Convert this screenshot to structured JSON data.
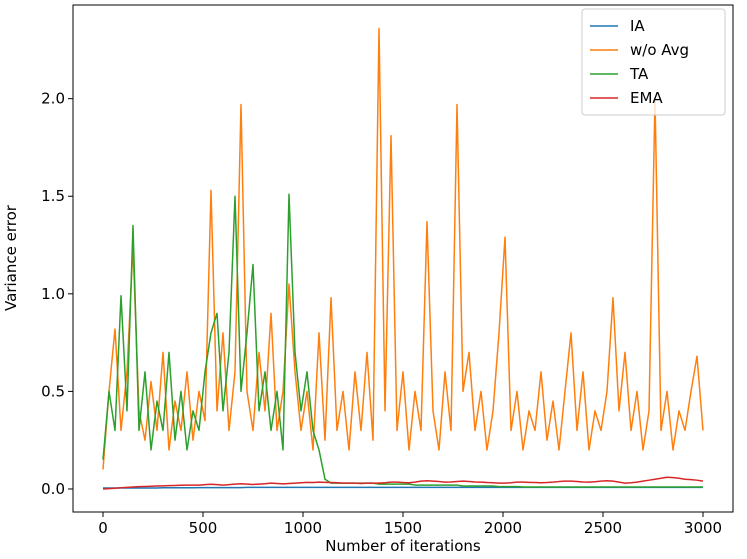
{
  "chart_data": {
    "type": "line",
    "xlabel": "Number of iterations",
    "ylabel": "Variance error",
    "xlim": [
      -150,
      3150
    ],
    "ylim": [
      -0.118,
      2.48
    ],
    "xticks": [
      0,
      500,
      1000,
      1500,
      2000,
      2500,
      3000
    ],
    "yticks": [
      {
        "value": 0,
        "label": "0.0"
      },
      {
        "value": 0.5,
        "label": "0.5"
      },
      {
        "value": 1,
        "label": "1.0"
      },
      {
        "value": 1.5,
        "label": "1.5"
      },
      {
        "value": 2,
        "label": "2.0"
      }
    ],
    "legend": "upper right",
    "grid": false,
    "x": [
      0,
      30,
      60,
      90,
      120,
      150,
      180,
      210,
      240,
      270,
      300,
      330,
      360,
      390,
      420,
      450,
      480,
      510,
      540,
      570,
      600,
      630,
      660,
      690,
      720,
      750,
      780,
      810,
      840,
      870,
      900,
      930,
      960,
      990,
      1020,
      1050,
      1080,
      1110,
      1140,
      1170,
      1200,
      1230,
      1260,
      1290,
      1320,
      1350,
      1380,
      1410,
      1440,
      1470,
      1500,
      1530,
      1560,
      1590,
      1620,
      1650,
      1680,
      1710,
      1740,
      1770,
      1800,
      1830,
      1860,
      1890,
      1920,
      1950,
      1980,
      2010,
      2040,
      2070,
      2100,
      2130,
      2160,
      2190,
      2220,
      2250,
      2280,
      2310,
      2340,
      2370,
      2400,
      2430,
      2460,
      2490,
      2520,
      2550,
      2580,
      2610,
      2640,
      2670,
      2700,
      2730,
      2760,
      2790,
      2820,
      2850,
      2880,
      2910,
      2940,
      2970,
      3000
    ],
    "series": [
      {
        "name": "IA",
        "color": "#1f77b4",
        "values": [
          0.005,
          0.005,
          0.005,
          0.005,
          0.005,
          0.005,
          0.005,
          0.005,
          0.005,
          0.005,
          0.006,
          0.006,
          0.006,
          0.006,
          0.006,
          0.006,
          0.007,
          0.007,
          0.007,
          0.007,
          0.007,
          0.007,
          0.007,
          0.007,
          0.008,
          0.008,
          0.008,
          0.008,
          0.008,
          0.008,
          0.008,
          0.008,
          0.008,
          0.008,
          0.008,
          0.008,
          0.008,
          0.008,
          0.008,
          0.008,
          0.008,
          0.008,
          0.008,
          0.008,
          0.008,
          0.008,
          0.008,
          0.008,
          0.008,
          0.008,
          0.008,
          0.008,
          0.008,
          0.008,
          0.008,
          0.008,
          0.008,
          0.008,
          0.008,
          0.008,
          0.008,
          0.008,
          0.008,
          0.008,
          0.008,
          0.008,
          0.008,
          0.008,
          0.008,
          0.008,
          0.008,
          0.008,
          0.008,
          0.008,
          0.008,
          0.008,
          0.008,
          0.008,
          0.008,
          0.008,
          0.008,
          0.008,
          0.008,
          0.008,
          0.008,
          0.008,
          0.008,
          0.008,
          0.008,
          0.008,
          0.008,
          0.008,
          0.008,
          0.008,
          0.008,
          0.008,
          0.008,
          0.008,
          0.008,
          0.008,
          0.008
        ]
      },
      {
        "name": "w/o Avg",
        "color": "#ff7f0e",
        "values": [
          0.1,
          0.5,
          0.82,
          0.3,
          0.6,
          1.24,
          0.4,
          0.25,
          0.55,
          0.3,
          0.7,
          0.2,
          0.45,
          0.3,
          0.6,
          0.25,
          0.5,
          0.35,
          1.53,
          0.4,
          0.8,
          0.3,
          0.6,
          1.97,
          0.5,
          0.3,
          0.7,
          0.4,
          0.9,
          0.3,
          0.5,
          1.05,
          0.6,
          0.3,
          0.5,
          0.2,
          0.8,
          0.25,
          0.98,
          0.3,
          0.5,
          0.2,
          0.6,
          0.3,
          0.7,
          0.25,
          2.36,
          0.4,
          1.81,
          0.3,
          0.6,
          0.2,
          0.5,
          0.3,
          1.37,
          0.4,
          0.2,
          0.6,
          0.3,
          1.97,
          0.5,
          0.7,
          0.3,
          0.5,
          0.2,
          0.4,
          0.8,
          1.29,
          0.3,
          0.5,
          0.2,
          0.4,
          0.3,
          0.6,
          0.25,
          0.45,
          0.2,
          0.5,
          0.8,
          0.3,
          0.6,
          0.2,
          0.4,
          0.3,
          0.5,
          0.98,
          0.4,
          0.7,
          0.3,
          0.5,
          0.2,
          0.4,
          2.0,
          0.3,
          0.5,
          0.2,
          0.4,
          0.3,
          0.5,
          0.68,
          0.3
        ]
      },
      {
        "name": "TA",
        "color": "#2ca02c",
        "values": [
          0.15,
          0.5,
          0.3,
          0.99,
          0.4,
          1.35,
          0.3,
          0.6,
          0.2,
          0.45,
          0.3,
          0.7,
          0.25,
          0.5,
          0.2,
          0.4,
          0.3,
          0.6,
          0.8,
          0.9,
          0.4,
          0.7,
          1.5,
          0.5,
          0.8,
          1.15,
          0.4,
          0.6,
          0.3,
          0.5,
          0.2,
          1.51,
          0.7,
          0.4,
          0.6,
          0.3,
          0.2,
          0.05,
          0.03,
          0.03,
          0.03,
          0.03,
          0.03,
          0.03,
          0.03,
          0.03,
          0.025,
          0.025,
          0.025,
          0.025,
          0.025,
          0.025,
          0.02,
          0.02,
          0.02,
          0.02,
          0.02,
          0.02,
          0.02,
          0.02,
          0.015,
          0.015,
          0.015,
          0.015,
          0.015,
          0.015,
          0.012,
          0.012,
          0.012,
          0.012,
          0.01,
          0.01,
          0.01,
          0.01,
          0.01,
          0.01,
          0.01,
          0.01,
          0.01,
          0.01,
          0.01,
          0.01,
          0.01,
          0.01,
          0.01,
          0.01,
          0.01,
          0.01,
          0.01,
          0.01,
          0.01,
          0.01,
          0.01,
          0.01,
          0.01,
          0.01,
          0.01,
          0.01,
          0.01,
          0.01,
          0.01
        ]
      },
      {
        "name": "EMA",
        "color": "#d62728",
        "values": [
          0,
          0.002,
          0.004,
          0.006,
          0.008,
          0.01,
          0.012,
          0.013,
          0.014,
          0.015,
          0.016,
          0.017,
          0.018,
          0.019,
          0.02,
          0.02,
          0.02,
          0.022,
          0.024,
          0.022,
          0.02,
          0.022,
          0.025,
          0.027,
          0.025,
          0.023,
          0.025,
          0.027,
          0.03,
          0.028,
          0.026,
          0.028,
          0.03,
          0.032,
          0.034,
          0.033,
          0.035,
          0.034,
          0.033,
          0.032,
          0.03,
          0.03,
          0.03,
          0.028,
          0.03,
          0.03,
          0.03,
          0.032,
          0.035,
          0.035,
          0.033,
          0.032,
          0.035,
          0.04,
          0.042,
          0.04,
          0.038,
          0.035,
          0.036,
          0.038,
          0.04,
          0.038,
          0.036,
          0.035,
          0.033,
          0.032,
          0.03,
          0.03,
          0.032,
          0.035,
          0.035,
          0.034,
          0.033,
          0.032,
          0.033,
          0.035,
          0.038,
          0.04,
          0.04,
          0.038,
          0.036,
          0.035,
          0.037,
          0.04,
          0.042,
          0.04,
          0.035,
          0.03,
          0.032,
          0.035,
          0.04,
          0.045,
          0.05,
          0.055,
          0.06,
          0.058,
          0.055,
          0.05,
          0.048,
          0.045,
          0.04
        ]
      }
    ]
  }
}
